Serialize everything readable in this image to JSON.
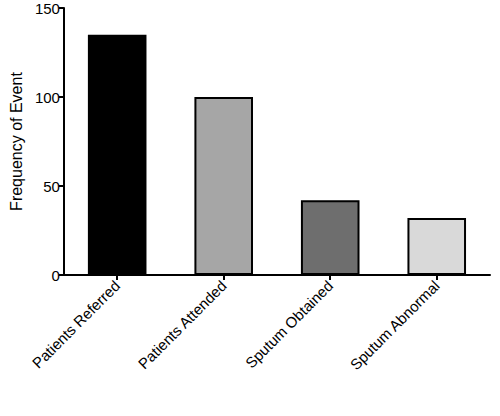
{
  "chart_data": {
    "type": "bar",
    "categories": [
      "Patients Referred",
      "Patients Attended",
      "Sputum Obtained",
      "Sputum Abnormal"
    ],
    "values": [
      135,
      100,
      42,
      32
    ],
    "colors": [
      "#000000",
      "#a6a6a6",
      "#6e6e6e",
      "#d9d9d9"
    ],
    "ylabel": "Frequency of Event",
    "ylim": [
      0,
      150
    ],
    "yticks": [
      0,
      50,
      100,
      150
    ],
    "grid": false
  }
}
